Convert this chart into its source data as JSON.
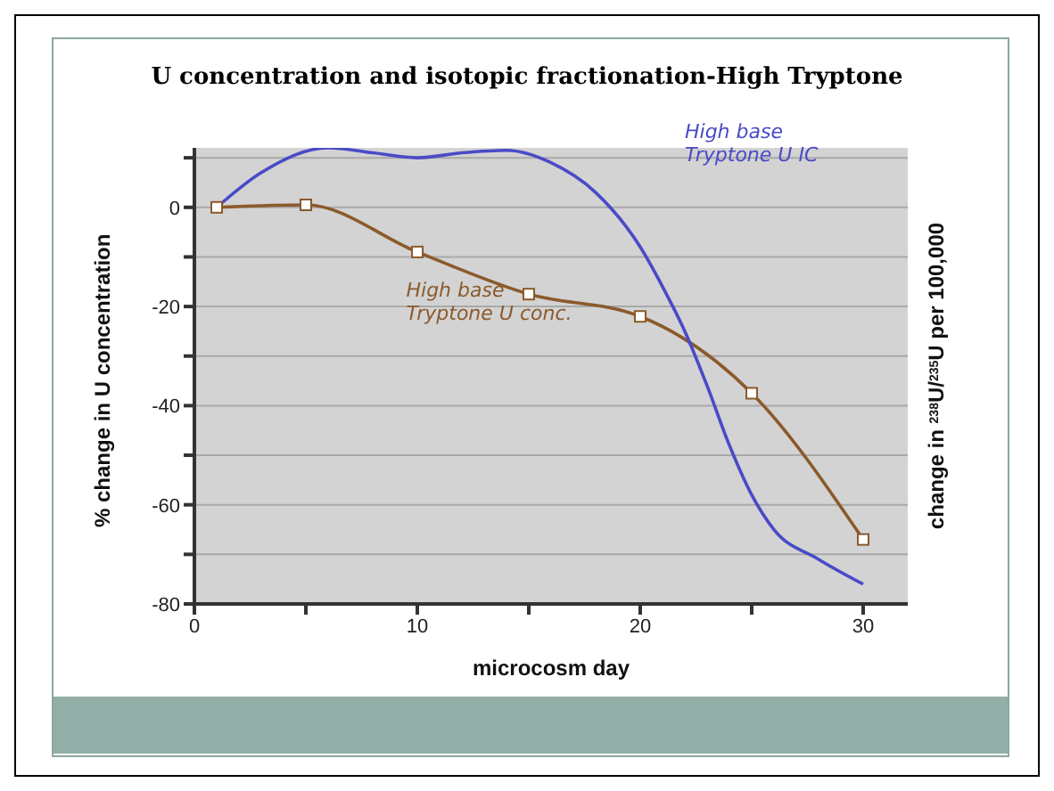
{
  "chart_data": {
    "type": "line",
    "title": "U concentration and isotopic fractionation-High Tryptone",
    "xlabel": "microcosm day",
    "ylabel": "% change in U concentration",
    "y2label": "change in $^{238}$U/$^{235}$U per 100,000",
    "xlim": [
      0,
      32
    ],
    "xticks": [
      0,
      {
        "value": 5,
        "label": null
      },
      10,
      {
        "value": 15,
        "label": null
      },
      20,
      {
        "value": 25,
        "label": null
      },
      30
    ],
    "ylim": [
      -80,
      12
    ],
    "yticks": [
      -80,
      {
        "value": -70,
        "label": null
      },
      -60,
      {
        "value": -50,
        "label": null
      },
      -40,
      {
        "value": -30,
        "label": null
      },
      -20,
      {
        "value": -10,
        "label": null
      },
      0,
      {
        "value": 10,
        "label": null
      }
    ],
    "grid": "y",
    "series": [
      {
        "name": "High base Tryptone U conc.",
        "color": "#8b5a2b",
        "marker": "square",
        "x": [
          1,
          5,
          10,
          15,
          20,
          25,
          30
        ],
        "values": [
          0,
          0.5,
          -9,
          -17.5,
          -22,
          -37.5,
          -67
        ]
      },
      {
        "name": "High base Tryptone U IC",
        "color": "#4a4ac8",
        "marker": "none",
        "x": [
          1,
          3,
          6,
          8,
          10,
          12,
          14,
          16,
          18,
          20,
          21,
          22,
          23,
          24,
          25,
          26,
          28,
          30
        ],
        "values": [
          0,
          7,
          12,
          11,
          10,
          11,
          11.5,
          9,
          3,
          -8,
          -16,
          -25,
          -36,
          -48,
          -58,
          -65,
          -71,
          -76
        ]
      }
    ]
  }
}
